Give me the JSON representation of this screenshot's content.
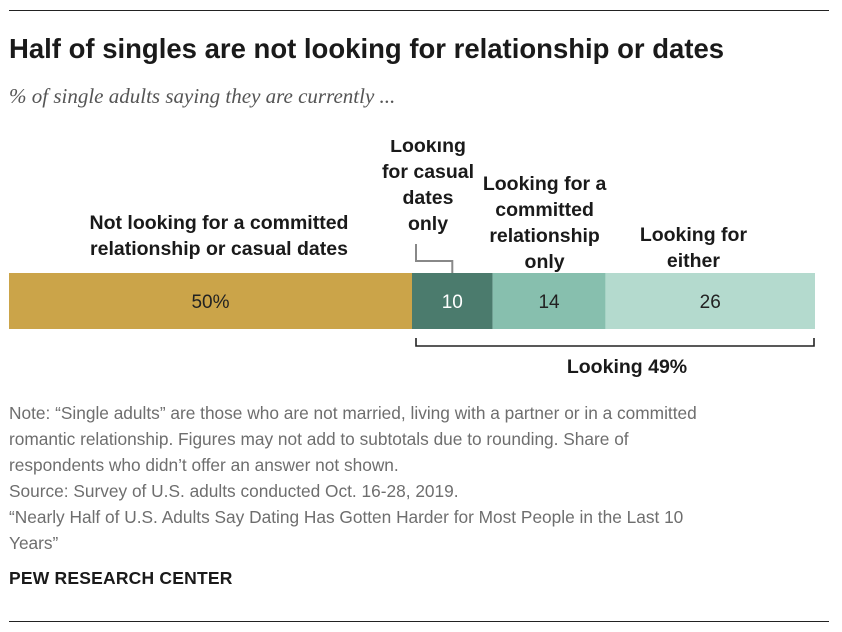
{
  "title": "Half of singles are not looking for relationship or dates",
  "subtitle": "% of single adults saying they are currently ...",
  "chart_data": {
    "type": "bar",
    "orientation": "horizontal-stacked",
    "series": [
      {
        "label_lines": [
          "Not looking for a committed",
          "relationship or casual dates"
        ],
        "value": 50,
        "value_label": "50%",
        "color": "#cba449",
        "text_color": "#222222"
      },
      {
        "label_lines": [
          "Looking",
          "for casual",
          "dates",
          "only"
        ],
        "value": 10,
        "value_label": "10",
        "color": "#4b7b6d",
        "text_color": "#ffffff"
      },
      {
        "label_lines": [
          "Looking for a",
          "committed",
          "relationship",
          "only"
        ],
        "value": 14,
        "value_label": "14",
        "color": "#87bfae",
        "text_color": "#222222"
      },
      {
        "label_lines": [
          "Looking for",
          "either"
        ],
        "value": 26,
        "value_label": "26",
        "color": "#b4dace",
        "text_color": "#222222"
      }
    ],
    "bracket_label": "Looking 49%",
    "total": 100
  },
  "notes": [
    "Note: “Single adults” are those who are not married, living with a partner or in a committed",
    "romantic relationship. Figures may not add to subtotals due to rounding. Share of",
    "respondents who didn’t offer an answer not shown.",
    "Source: Survey of U.S. adults conducted Oct. 16-28, 2019.",
    "“Nearly Half of U.S. Adults Say Dating Has Gotten Harder for Most People in the Last 10",
    "Years”"
  ],
  "brand": "PEW RESEARCH CENTER"
}
